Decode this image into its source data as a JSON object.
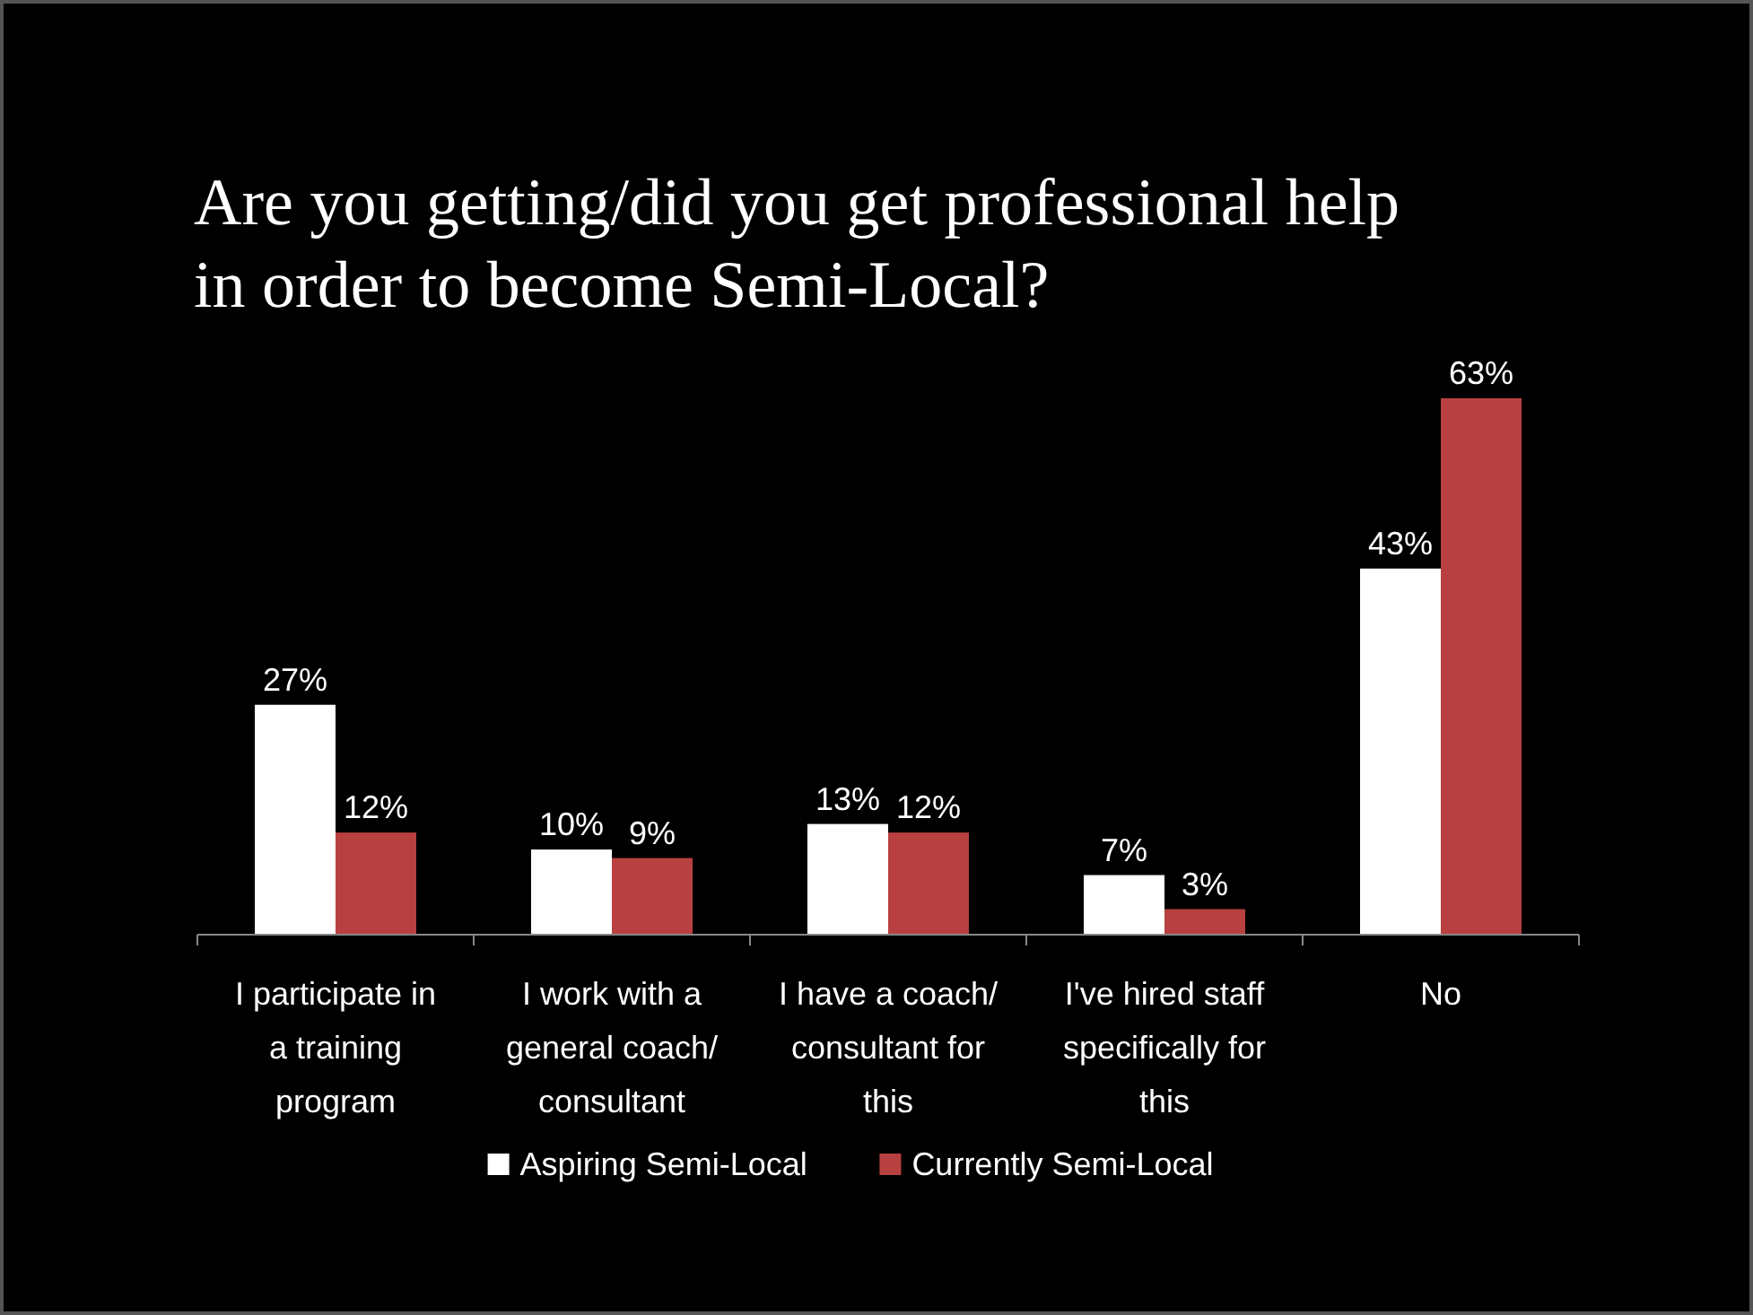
{
  "chart_data": {
    "type": "bar",
    "title": "Are you getting/did you get professional help in order to become Semi-Local?",
    "categories": [
      "I participate in a training program",
      "I work with a general coach/ consultant",
      "I have a coach/ consultant for this",
      "I've hired staff specifically for this",
      "No"
    ],
    "series": [
      {
        "name": "Aspiring Semi-Local",
        "color": "#ffffff",
        "values": [
          27,
          10,
          13,
          7,
          43
        ],
        "value_labels": [
          "27%",
          "10%",
          "13%",
          "7%",
          "43%"
        ]
      },
      {
        "name": "Currently Semi-Local",
        "color": "#b84040",
        "values": [
          12,
          9,
          12,
          3,
          63
        ],
        "value_labels": [
          "12%",
          "9%",
          "12%",
          "3%",
          "63%"
        ]
      }
    ],
    "legend": "bottom"
  }
}
